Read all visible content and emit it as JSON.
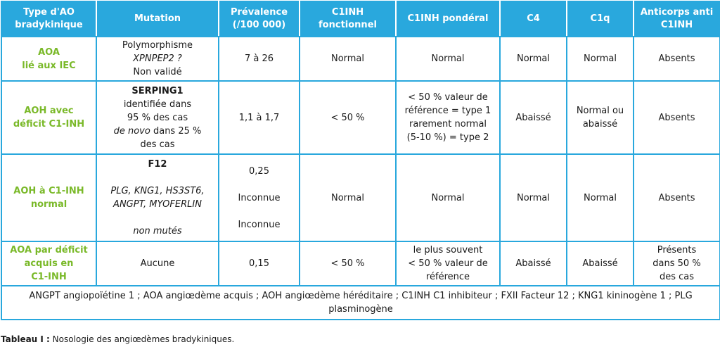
{
  "headers": {
    "type": "Type d'AO bradykinique",
    "mutation": "Mutation",
    "prevalence": "Prévalence (/100 000)",
    "c1inh_fonc": "C1INH fonctionnel",
    "c1inh_pond": "C1INH pondéral",
    "c4": "C4",
    "c1q": "C1q",
    "anticorps": "Anticorps anti C1INH"
  },
  "rows": [
    {
      "type": [
        "AOA",
        "lié aux IEC"
      ],
      "mutation": [
        "Polymorphisme",
        "XPNPEP2 ?",
        "Non validé"
      ],
      "prevalence": "7 à 26",
      "c1inh_fonc": "Normal",
      "c1inh_pond": "Normal",
      "c4": "Normal",
      "c1q": "Normal",
      "anticorps": "Absents"
    },
    {
      "type": [
        "AOH avec",
        "déficit C1-INH"
      ],
      "mutation": {
        "gene": "SERPING1",
        "l1": "identifiée dans",
        "l2": "95 % des cas",
        "l3_it": "de novo",
        "l3_rest": " dans 25 %",
        "l4": "des cas"
      },
      "prevalence": "1,1 à 1,7",
      "c1inh_fonc": "< 50 %",
      "c1inh_pond": [
        "< 50 % valeur de",
        "référence = type 1",
        "rarement normal",
        "(5-10 %) = type 2"
      ],
      "c4": "Abaissé",
      "c1q": [
        "Normal ou",
        "abaissé"
      ],
      "anticorps": "Absents"
    },
    {
      "type": [
        "AOH à C1-INH",
        "normal"
      ],
      "mutation": {
        "gene": "F12",
        "genes_it": [
          "PLG, KNG1, HS3ST6,",
          "ANGPT, MYOFERLIN"
        ],
        "note_it": "non mutés"
      },
      "prevalence": [
        "0,25",
        "Inconnue",
        "Inconnue"
      ],
      "c1inh_fonc": "Normal",
      "c1inh_pond": "Normal",
      "c4": "Normal",
      "c1q": "Normal",
      "anticorps": "Absents"
    },
    {
      "type": [
        "AOA par déficit",
        "acquis en",
        "C1-INH"
      ],
      "mutation": "Aucune",
      "prevalence": "0,15",
      "c1inh_fonc": "< 50 %",
      "c1inh_pond": [
        "le plus souvent",
        "< 50 % valeur de",
        "référence"
      ],
      "c4": "Abaissé",
      "c1q": "Abaissé",
      "anticorps": [
        "Présents",
        "dans 50 %",
        "des cas"
      ]
    }
  ],
  "footnote": "ANGPT angiopoïétine 1 ; AOA angiœdème acquis ; AOH angiœdème héréditaire ; C1INH C1 inhibiteur ; FXII Facteur 12 ; KNG1 kininogène 1 ; PLG plasminogène",
  "caption": {
    "label": "Tableau I :",
    "text": " Nosologie des angiœdèmes bradykiniques."
  },
  "colors": {
    "header_bg": "#29a8dd",
    "border": "#29a8dd",
    "type_text": "#7ab929"
  }
}
